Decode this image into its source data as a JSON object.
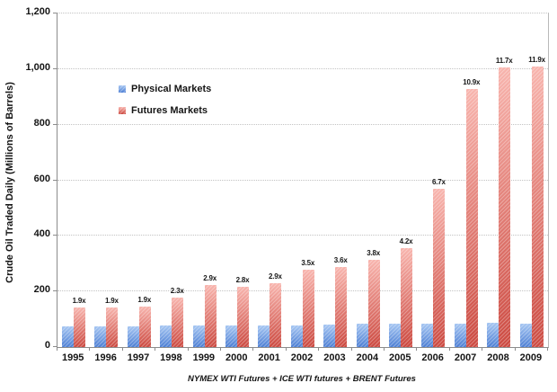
{
  "chart_data": {
    "type": "bar",
    "title": "",
    "ylabel": "Crude Oil Traded Daily (Millions of Barrels)",
    "xlabel": "NYMEX WTI Futures + ICE WTI futures + BRENT Futures",
    "categories": [
      "1995",
      "1996",
      "1997",
      "1998",
      "1999",
      "2000",
      "2001",
      "2002",
      "2003",
      "2004",
      "2005",
      "2006",
      "2007",
      "2008",
      "2009"
    ],
    "series": [
      {
        "name": "Physical Markets",
        "values": [
          75,
          75,
          76,
          78,
          77,
          78,
          79,
          79,
          80,
          83,
          85,
          85,
          85,
          86,
          85
        ],
        "color_top": "#a6c6f2",
        "color_bottom": "#4d7fd4"
      },
      {
        "name": "Futures Markets",
        "values": [
          142,
          142,
          144,
          179,
          223,
          218,
          229,
          277,
          288,
          315,
          357,
          570,
          927,
          1006,
          1010
        ],
        "color_top": "#f8b5ae",
        "color_bottom": "#cc4a41"
      }
    ],
    "bar_labels": [
      "1.9x",
      "1.9x",
      "1.9x",
      "2.3x",
      "2.9x",
      "2.8x",
      "2.9x",
      "3.5x",
      "3.6x",
      "3.8x",
      "4.2x",
      "6.7x",
      "10.9x",
      "11.7x",
      "11.9x"
    ],
    "ylim": [
      0,
      1200
    ],
    "yticks": [
      {
        "value": 0,
        "label": "0"
      },
      {
        "value": 200,
        "label": "200"
      },
      {
        "value": 400,
        "label": "400"
      },
      {
        "value": 600,
        "label": "600"
      },
      {
        "value": 800,
        "label": "800"
      },
      {
        "value": 1000,
        "label": "1,000"
      },
      {
        "value": 1200,
        "label": "1,200"
      }
    ],
    "grid": "horizontal-dotted",
    "legend_position": "inside-upper-left"
  }
}
